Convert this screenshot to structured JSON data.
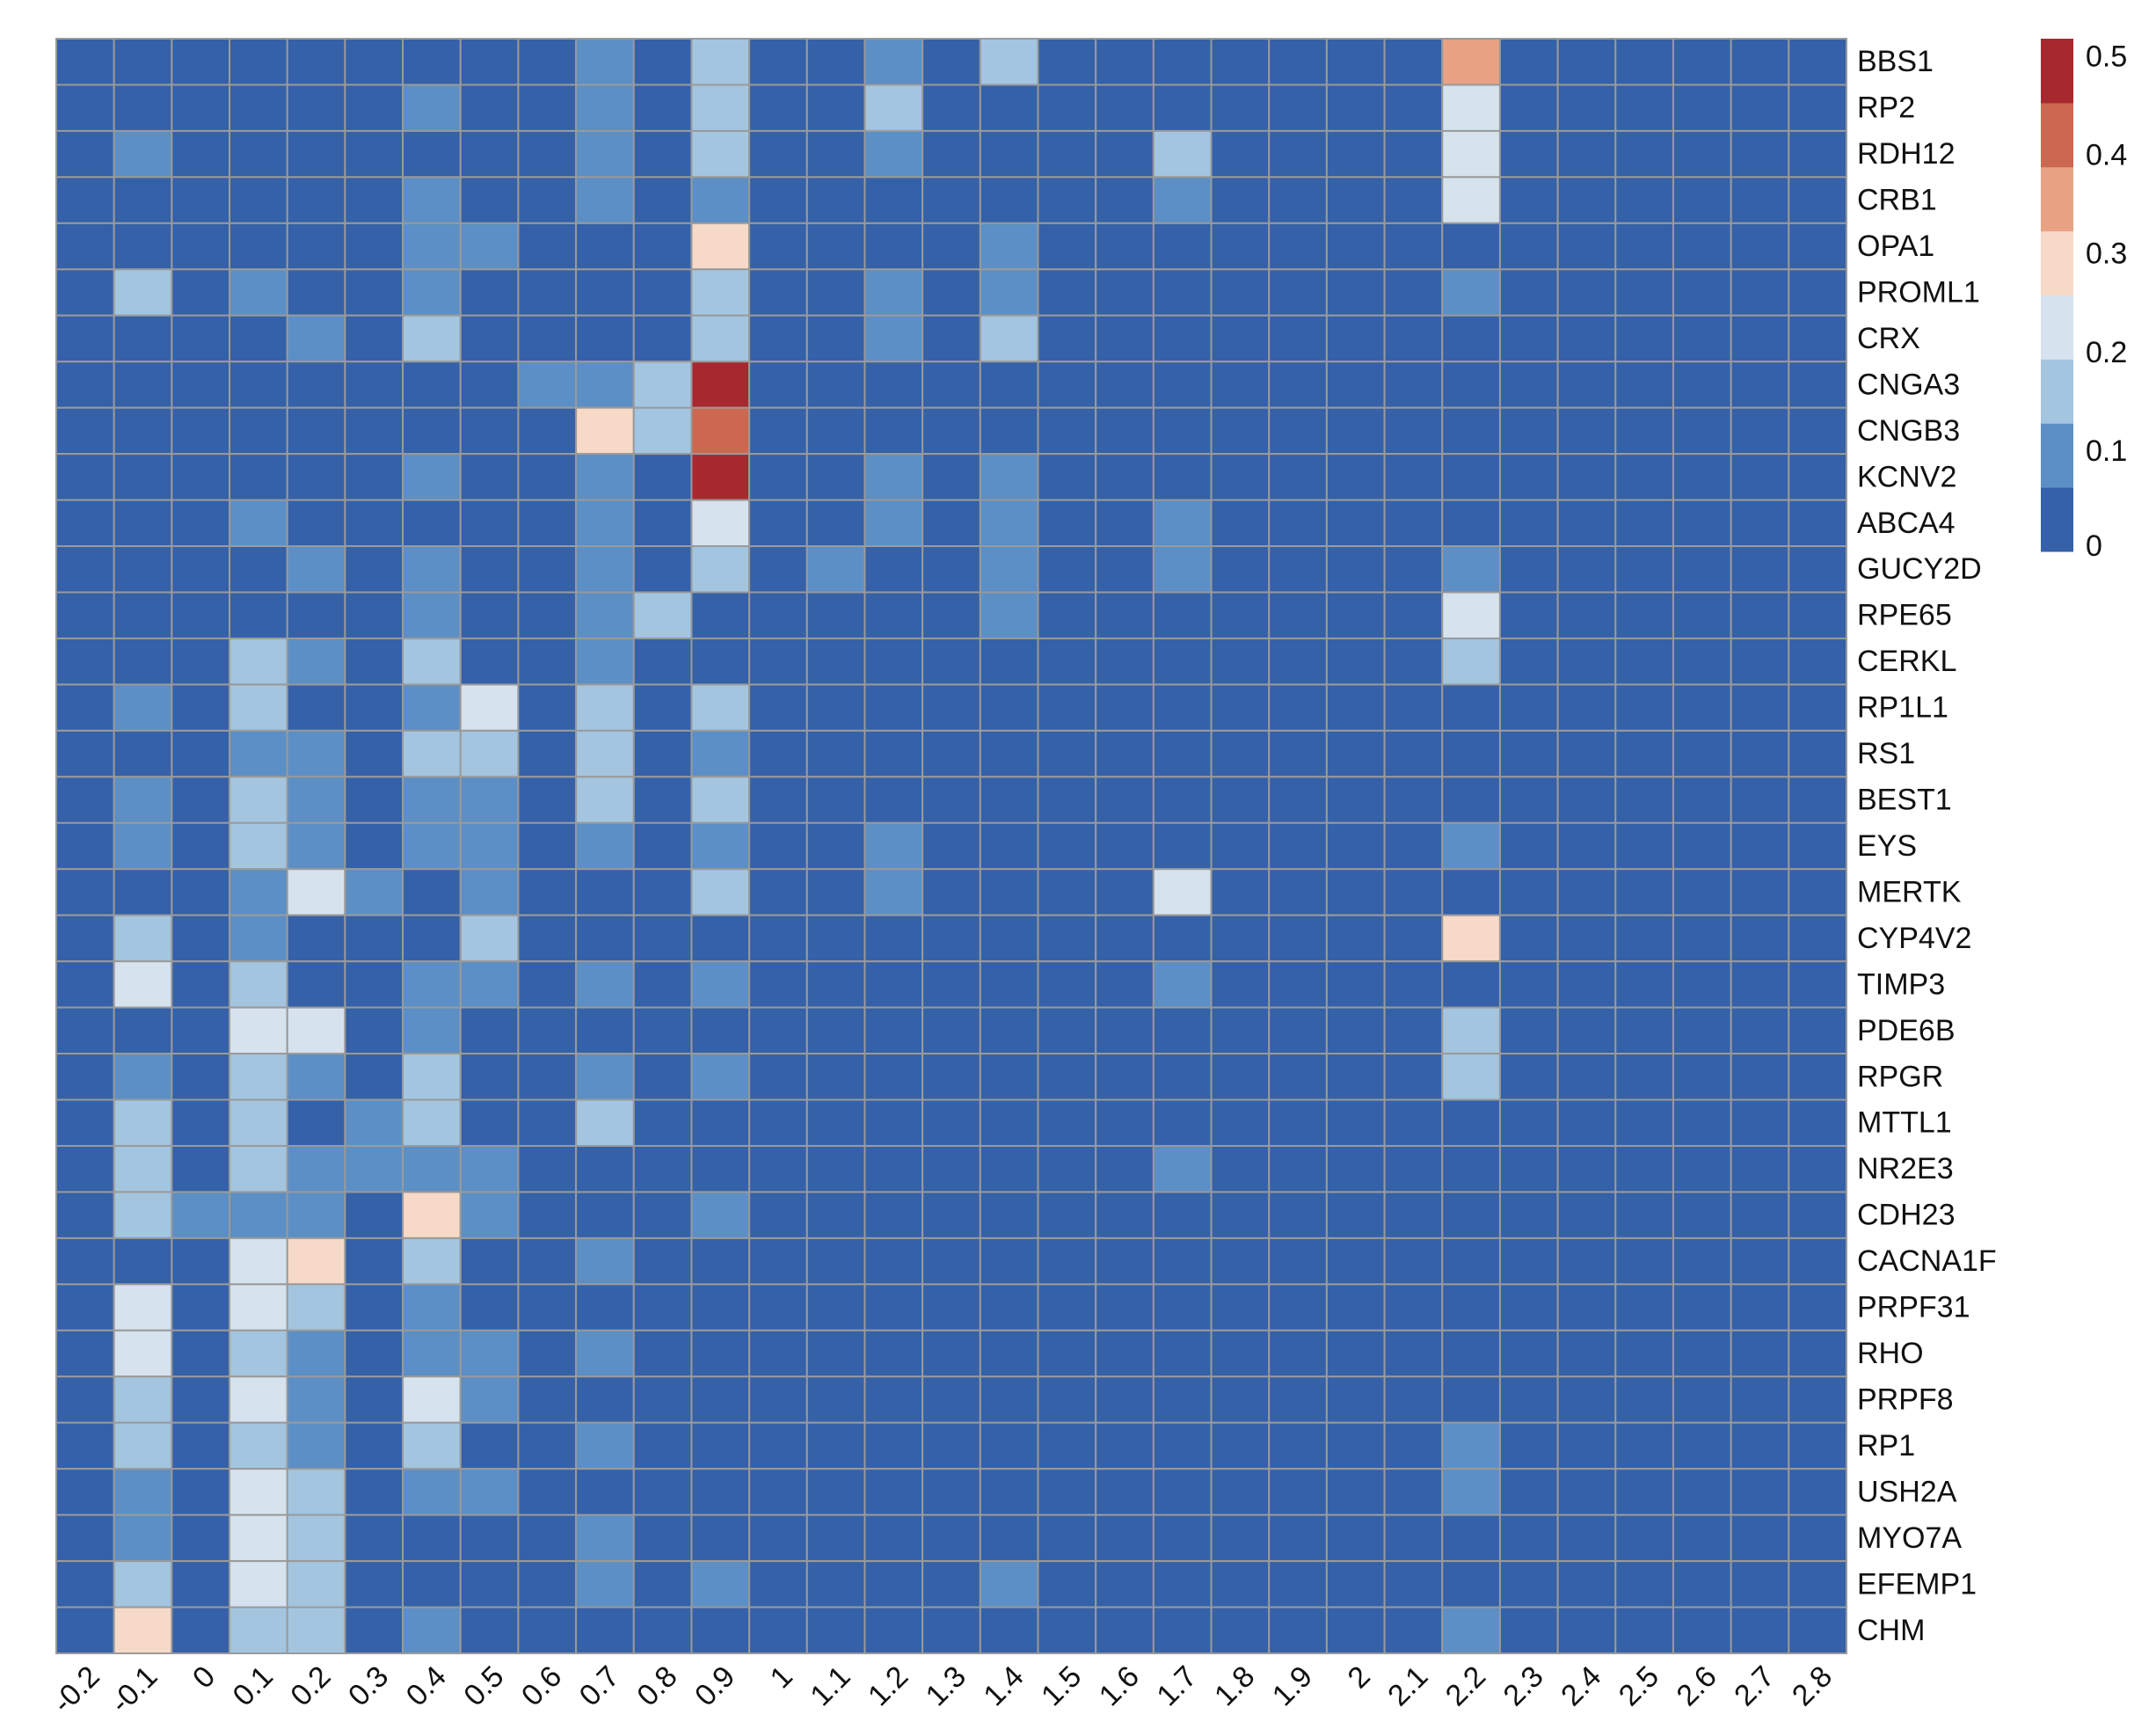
{
  "chart_data": {
    "type": "heatmap",
    "categories": [
      "-0.2",
      "-0.1",
      "0",
      "0.1",
      "0.2",
      "0.3",
      "0.4",
      "0.5",
      "0.6",
      "0.7",
      "0.8",
      "0.9",
      "1",
      "1.1",
      "1.2",
      "1.3",
      "1.4",
      "1.5",
      "1.6",
      "1.7",
      "1.8",
      "1.9",
      "2",
      "2.1",
      "2.2",
      "2.3",
      "2.4",
      "2.5",
      "2.6",
      "2.7",
      "2.8"
    ],
    "series": [
      {
        "name": "BBS1",
        "values": [
          0,
          0,
          0,
          0,
          0,
          0,
          0,
          0,
          0,
          0.1,
          0,
          0.15,
          0,
          0,
          0.1,
          0,
          0.15,
          0,
          0,
          0,
          0,
          0,
          0,
          0,
          0.35,
          0,
          0,
          0,
          0,
          0,
          0
        ]
      },
      {
        "name": "RP2",
        "values": [
          0,
          0,
          0,
          0,
          0,
          0,
          0.1,
          0,
          0,
          0.1,
          0,
          0.15,
          0,
          0,
          0.15,
          0,
          0,
          0,
          0,
          0,
          0,
          0,
          0,
          0,
          0.22,
          0,
          0,
          0,
          0,
          0,
          0
        ]
      },
      {
        "name": "RDH12",
        "values": [
          0,
          0.1,
          0,
          0,
          0,
          0,
          0,
          0,
          0,
          0.1,
          0,
          0.15,
          0,
          0,
          0.1,
          0,
          0,
          0,
          0,
          0.15,
          0,
          0,
          0,
          0,
          0.22,
          0,
          0,
          0,
          0,
          0,
          0
        ]
      },
      {
        "name": "CRB1",
        "values": [
          0,
          0,
          0,
          0,
          0,
          0,
          0.1,
          0,
          0,
          0.1,
          0,
          0.1,
          0,
          0,
          0,
          0,
          0,
          0,
          0,
          0.1,
          0,
          0,
          0,
          0,
          0.22,
          0,
          0,
          0,
          0,
          0,
          0
        ]
      },
      {
        "name": "OPA1",
        "values": [
          0,
          0,
          0,
          0,
          0,
          0,
          0.1,
          0.1,
          0,
          0,
          0,
          0.28,
          0,
          0,
          0,
          0,
          0.1,
          0,
          0,
          0,
          0,
          0,
          0,
          0,
          0,
          0,
          0,
          0,
          0,
          0,
          0
        ]
      },
      {
        "name": "PROML1",
        "values": [
          0,
          0.15,
          0,
          0.1,
          0,
          0,
          0.1,
          0,
          0,
          0,
          0,
          0.15,
          0,
          0,
          0.1,
          0,
          0.1,
          0,
          0,
          0,
          0,
          0,
          0,
          0,
          0.1,
          0,
          0,
          0,
          0,
          0,
          0
        ]
      },
      {
        "name": "CRX",
        "values": [
          0,
          0,
          0,
          0,
          0.1,
          0,
          0.15,
          0,
          0,
          0,
          0,
          0.15,
          0,
          0,
          0.1,
          0,
          0.15,
          0,
          0,
          0,
          0,
          0,
          0,
          0,
          0,
          0,
          0,
          0,
          0,
          0,
          0
        ]
      },
      {
        "name": "CNGA3",
        "values": [
          0,
          0,
          0,
          0,
          0,
          0,
          0,
          0,
          0.1,
          0.1,
          0.15,
          0.5,
          0,
          0,
          0,
          0,
          0,
          0,
          0,
          0,
          0,
          0,
          0,
          0,
          0,
          0,
          0,
          0,
          0,
          0,
          0
        ]
      },
      {
        "name": "CNGB3",
        "values": [
          0,
          0,
          0,
          0,
          0,
          0,
          0,
          0,
          0,
          0.28,
          0.15,
          0.42,
          0,
          0,
          0,
          0,
          0,
          0,
          0,
          0,
          0,
          0,
          0,
          0,
          0,
          0,
          0,
          0,
          0,
          0,
          0
        ]
      },
      {
        "name": "KCNV2",
        "values": [
          0,
          0,
          0,
          0,
          0,
          0,
          0.1,
          0,
          0,
          0.1,
          0,
          0.5,
          0,
          0,
          0.1,
          0,
          0.1,
          0,
          0,
          0,
          0,
          0,
          0,
          0,
          0,
          0,
          0,
          0,
          0,
          0,
          0
        ]
      },
      {
        "name": "ABCA4",
        "values": [
          0,
          0,
          0,
          0.1,
          0,
          0,
          0,
          0,
          0,
          0.1,
          0,
          0.22,
          0,
          0,
          0.1,
          0,
          0.1,
          0,
          0,
          0.1,
          0,
          0,
          0,
          0,
          0,
          0,
          0,
          0,
          0,
          0,
          0
        ]
      },
      {
        "name": "GUCY2D",
        "values": [
          0,
          0,
          0,
          0,
          0.1,
          0,
          0.1,
          0,
          0,
          0.1,
          0,
          0.15,
          0,
          0.1,
          0,
          0,
          0.1,
          0,
          0,
          0.1,
          0,
          0,
          0,
          0,
          0.1,
          0,
          0,
          0,
          0,
          0,
          0
        ]
      },
      {
        "name": "RPE65",
        "values": [
          0,
          0,
          0,
          0,
          0,
          0,
          0.1,
          0,
          0,
          0.1,
          0.15,
          0,
          0,
          0,
          0,
          0,
          0.1,
          0,
          0,
          0,
          0,
          0,
          0,
          0,
          0.22,
          0,
          0,
          0,
          0,
          0,
          0
        ]
      },
      {
        "name": "CERKL",
        "values": [
          0,
          0,
          0,
          0.15,
          0.1,
          0,
          0.15,
          0,
          0,
          0.1,
          0,
          0,
          0,
          0,
          0,
          0,
          0,
          0,
          0,
          0,
          0,
          0,
          0,
          0,
          0.15,
          0,
          0,
          0,
          0,
          0,
          0
        ]
      },
      {
        "name": "RP1L1",
        "values": [
          0,
          0.1,
          0,
          0.15,
          0,
          0,
          0.1,
          0.22,
          0,
          0.15,
          0,
          0.15,
          0,
          0,
          0,
          0,
          0,
          0,
          0,
          0,
          0,
          0,
          0,
          0,
          0,
          0,
          0,
          0,
          0,
          0,
          0
        ]
      },
      {
        "name": "RS1",
        "values": [
          0,
          0,
          0,
          0.1,
          0.1,
          0,
          0.15,
          0.15,
          0,
          0.15,
          0,
          0.1,
          0,
          0,
          0,
          0,
          0,
          0,
          0,
          0,
          0,
          0,
          0,
          0,
          0,
          0,
          0,
          0,
          0,
          0,
          0
        ]
      },
      {
        "name": "BEST1",
        "values": [
          0,
          0.1,
          0,
          0.15,
          0.1,
          0,
          0.1,
          0.1,
          0,
          0.15,
          0,
          0.15,
          0,
          0,
          0,
          0,
          0,
          0,
          0,
          0,
          0,
          0,
          0,
          0,
          0,
          0,
          0,
          0,
          0,
          0,
          0
        ]
      },
      {
        "name": "EYS",
        "values": [
          0,
          0.1,
          0,
          0.15,
          0.1,
          0,
          0.1,
          0.1,
          0,
          0.1,
          0,
          0.1,
          0,
          0,
          0.1,
          0,
          0,
          0,
          0,
          0,
          0,
          0,
          0,
          0,
          0.1,
          0,
          0,
          0,
          0,
          0,
          0
        ]
      },
      {
        "name": "MERTK",
        "values": [
          0,
          0,
          0,
          0.1,
          0.22,
          0.1,
          0,
          0.1,
          0,
          0,
          0,
          0.15,
          0,
          0,
          0.1,
          0,
          0,
          0,
          0,
          0.22,
          0,
          0,
          0,
          0,
          0,
          0,
          0,
          0,
          0,
          0,
          0
        ]
      },
      {
        "name": "CYP4V2",
        "values": [
          0,
          0.15,
          0,
          0.1,
          0,
          0,
          0,
          0.15,
          0,
          0,
          0,
          0,
          0,
          0,
          0,
          0,
          0,
          0,
          0,
          0,
          0,
          0,
          0,
          0,
          0.28,
          0,
          0,
          0,
          0,
          0,
          0
        ]
      },
      {
        "name": "TIMP3",
        "values": [
          0,
          0.22,
          0,
          0.15,
          0,
          0,
          0.1,
          0.1,
          0,
          0.1,
          0,
          0.1,
          0,
          0,
          0,
          0,
          0,
          0,
          0,
          0.1,
          0,
          0,
          0,
          0,
          0,
          0,
          0,
          0,
          0,
          0,
          0
        ]
      },
      {
        "name": "PDE6B",
        "values": [
          0,
          0,
          0,
          0.22,
          0.22,
          0,
          0.1,
          0,
          0,
          0,
          0,
          0,
          0,
          0,
          0,
          0,
          0,
          0,
          0,
          0,
          0,
          0,
          0,
          0,
          0.15,
          0,
          0,
          0,
          0,
          0,
          0
        ]
      },
      {
        "name": "RPGR",
        "values": [
          0,
          0.1,
          0,
          0.15,
          0.1,
          0,
          0.15,
          0,
          0,
          0.1,
          0,
          0.1,
          0,
          0,
          0,
          0,
          0,
          0,
          0,
          0,
          0,
          0,
          0,
          0,
          0.15,
          0,
          0,
          0,
          0,
          0,
          0
        ]
      },
      {
        "name": "MTTL1",
        "values": [
          0,
          0.15,
          0,
          0.15,
          0,
          0.1,
          0.15,
          0,
          0,
          0.15,
          0,
          0,
          0,
          0,
          0,
          0,
          0,
          0,
          0,
          0,
          0,
          0,
          0,
          0,
          0,
          0,
          0,
          0,
          0,
          0,
          0
        ]
      },
      {
        "name": "NR2E3",
        "values": [
          0,
          0.15,
          0,
          0.15,
          0.1,
          0.1,
          0.1,
          0.1,
          0,
          0,
          0,
          0,
          0,
          0,
          0,
          0,
          0,
          0,
          0,
          0.1,
          0,
          0,
          0,
          0,
          0,
          0,
          0,
          0,
          0,
          0,
          0
        ]
      },
      {
        "name": "CDH23",
        "values": [
          0,
          0.15,
          0.1,
          0.1,
          0.1,
          0,
          0.28,
          0.1,
          0,
          0,
          0,
          0.1,
          0,
          0,
          0,
          0,
          0,
          0,
          0,
          0,
          0,
          0,
          0,
          0,
          0,
          0,
          0,
          0,
          0,
          0,
          0
        ]
      },
      {
        "name": "CACNA1F",
        "values": [
          0,
          0,
          0,
          0.22,
          0.28,
          0,
          0.15,
          0,
          0,
          0.1,
          0,
          0,
          0,
          0,
          0,
          0,
          0,
          0,
          0,
          0,
          0,
          0,
          0,
          0,
          0,
          0,
          0,
          0,
          0,
          0,
          0
        ]
      },
      {
        "name": "PRPF31",
        "values": [
          0,
          0.22,
          0,
          0.22,
          0.15,
          0,
          0.1,
          0,
          0,
          0,
          0,
          0,
          0,
          0,
          0,
          0,
          0,
          0,
          0,
          0,
          0,
          0,
          0,
          0,
          0,
          0,
          0,
          0,
          0,
          0,
          0
        ]
      },
      {
        "name": "RHO",
        "values": [
          0,
          0.22,
          0,
          0.15,
          0.1,
          0,
          0.1,
          0.1,
          0,
          0.1,
          0,
          0,
          0,
          0,
          0,
          0,
          0,
          0,
          0,
          0,
          0,
          0,
          0,
          0,
          0,
          0,
          0,
          0,
          0,
          0,
          0
        ]
      },
      {
        "name": "PRPF8",
        "values": [
          0,
          0.15,
          0,
          0.22,
          0.1,
          0,
          0.22,
          0.1,
          0,
          0,
          0,
          0,
          0,
          0,
          0,
          0,
          0,
          0,
          0,
          0,
          0,
          0,
          0,
          0,
          0,
          0,
          0,
          0,
          0,
          0,
          0
        ]
      },
      {
        "name": "RP1",
        "values": [
          0,
          0.15,
          0,
          0.15,
          0.1,
          0,
          0.15,
          0,
          0,
          0.1,
          0,
          0,
          0,
          0,
          0,
          0,
          0,
          0,
          0,
          0,
          0,
          0,
          0,
          0,
          0.1,
          0,
          0,
          0,
          0,
          0,
          0
        ]
      },
      {
        "name": "USH2A",
        "values": [
          0,
          0.1,
          0,
          0.22,
          0.15,
          0,
          0.1,
          0.1,
          0,
          0,
          0,
          0,
          0,
          0,
          0,
          0,
          0,
          0,
          0,
          0,
          0,
          0,
          0,
          0,
          0.1,
          0,
          0,
          0,
          0,
          0,
          0
        ]
      },
      {
        "name": "MYO7A",
        "values": [
          0,
          0.1,
          0,
          0.22,
          0.15,
          0,
          0,
          0,
          0,
          0.1,
          0,
          0,
          0,
          0,
          0,
          0,
          0,
          0,
          0,
          0,
          0,
          0,
          0,
          0,
          0,
          0,
          0,
          0,
          0,
          0,
          0
        ]
      },
      {
        "name": "EFEMP1",
        "values": [
          0,
          0.15,
          0,
          0.22,
          0.15,
          0,
          0,
          0,
          0,
          0.1,
          0,
          0.1,
          0,
          0,
          0,
          0,
          0.1,
          0,
          0,
          0,
          0,
          0,
          0,
          0,
          0,
          0,
          0,
          0,
          0,
          0,
          0
        ]
      },
      {
        "name": "CHM",
        "values": [
          0,
          0.28,
          0,
          0.15,
          0.15,
          0,
          0.1,
          0,
          0,
          0,
          0,
          0,
          0,
          0,
          0,
          0,
          0,
          0,
          0,
          0,
          0,
          0,
          0,
          0,
          0.1,
          0,
          0,
          0,
          0,
          0,
          0
        ]
      }
    ],
    "clim": [
      0,
      0.52
    ],
    "colors": [
      "#3461a8",
      "#5b8fc5",
      "#a3c5e0",
      "#d6e2ee",
      "#f6d9c6",
      "#e8a283",
      "#cc6750",
      "#a8282f"
    ],
    "colorbar_ticks": [
      0,
      0.1,
      0.2,
      0.3,
      0.4,
      0.5
    ],
    "grid_color": "#9a9a9a"
  }
}
